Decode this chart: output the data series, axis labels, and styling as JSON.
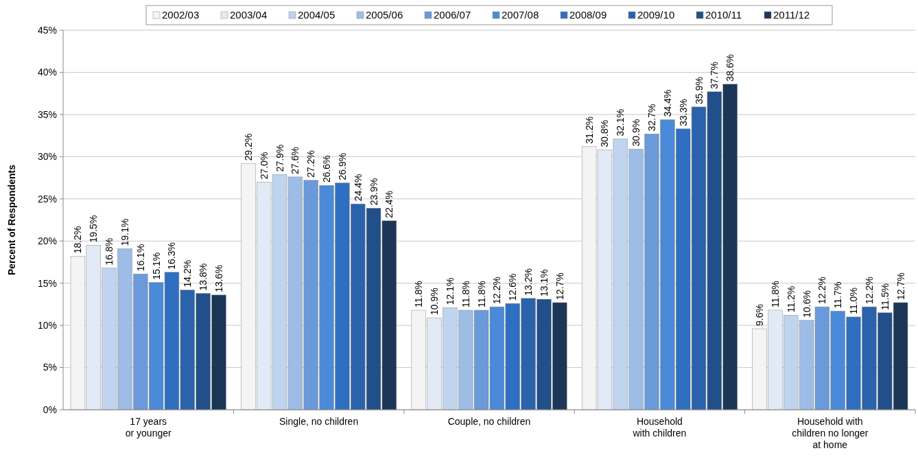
{
  "chart_data": {
    "type": "bar",
    "ylabel": "Percent of Respondents",
    "categories": [
      "17 years\nor younger",
      "Single, no children",
      "Couple, no children",
      "Household\nwith children",
      "Household with\nchildren no longer\nat home"
    ],
    "ylim": [
      0,
      45
    ],
    "yticks": [
      {
        "value": 0,
        "label": "0%"
      },
      {
        "value": 5,
        "label": "5%"
      },
      {
        "value": 10,
        "label": "10%"
      },
      {
        "value": 15,
        "label": "15%"
      },
      {
        "value": 20,
        "label": "20%"
      },
      {
        "value": 25,
        "label": "25%"
      },
      {
        "value": 30,
        "label": "30%"
      },
      {
        "value": 35,
        "label": "35%"
      },
      {
        "value": 40,
        "label": "40%"
      },
      {
        "value": 45,
        "label": "45%"
      }
    ],
    "grid": "y",
    "legend": "top",
    "series": [
      {
        "name": "2002/03",
        "color": "#f4f4f4",
        "values": [
          18.2,
          29.2,
          11.8,
          31.2,
          9.6
        ],
        "value_labels": [
          "18.2%",
          "29.2%",
          "11.8%",
          "31.2%",
          "9.6%"
        ]
      },
      {
        "name": "2003/04",
        "color": "#e2eaf6",
        "values": [
          19.5,
          27.0,
          10.9,
          30.8,
          11.8
        ],
        "value_labels": [
          "19.5%",
          "27.0%",
          "10.9%",
          "30.8%",
          "11.8%"
        ]
      },
      {
        "name": "2004/05",
        "color": "#c0d4ef",
        "values": [
          16.8,
          27.9,
          12.1,
          32.1,
          11.2
        ],
        "value_labels": [
          "16.8%",
          "27.9%",
          "12.1%",
          "32.1%",
          "11.2%"
        ]
      },
      {
        "name": "2005/06",
        "color": "#9dbde6",
        "values": [
          19.1,
          27.6,
          11.8,
          30.9,
          10.6
        ],
        "value_labels": [
          "19.1%",
          "27.6%",
          "11.8%",
          "30.9%",
          "10.6%"
        ]
      },
      {
        "name": "2006/07",
        "color": "#6a9ad9",
        "values": [
          16.1,
          27.2,
          11.8,
          32.7,
          12.2
        ],
        "value_labels": [
          "16.1%",
          "27.2%",
          "11.8%",
          "32.7%",
          "12.2%"
        ]
      },
      {
        "name": "2007/08",
        "color": "#4a8ad8",
        "values": [
          15.1,
          26.6,
          12.2,
          34.4,
          11.7
        ],
        "value_labels": [
          "15.1%",
          "26.6%",
          "12.2%",
          "34.4%",
          "11.7%"
        ]
      },
      {
        "name": "2008/09",
        "color": "#2f6fc2",
        "values": [
          16.3,
          26.9,
          12.6,
          33.3,
          11.0
        ],
        "value_labels": [
          "16.3%",
          "26.9%",
          "12.6%",
          "33.3%",
          "11.0%"
        ]
      },
      {
        "name": "2009/10",
        "color": "#2a62ab",
        "values": [
          14.2,
          24.4,
          13.2,
          35.9,
          12.2
        ],
        "value_labels": [
          "14.2%",
          "24.4%",
          "13.2%",
          "35.9%",
          "12.2%"
        ]
      },
      {
        "name": "2010/11",
        "color": "#214f8a",
        "values": [
          13.8,
          23.9,
          13.1,
          37.7,
          11.5
        ],
        "value_labels": [
          "13.8%",
          "23.9%",
          "13.1%",
          "37.7%",
          "11.5%"
        ]
      },
      {
        "name": "2011/12",
        "color": "#1c3658",
        "values": [
          13.6,
          22.4,
          12.7,
          38.6,
          12.7
        ],
        "value_labels": [
          "13.6%",
          "22.4%",
          "12.7%",
          "38.6%",
          "12.7%"
        ]
      }
    ]
  }
}
